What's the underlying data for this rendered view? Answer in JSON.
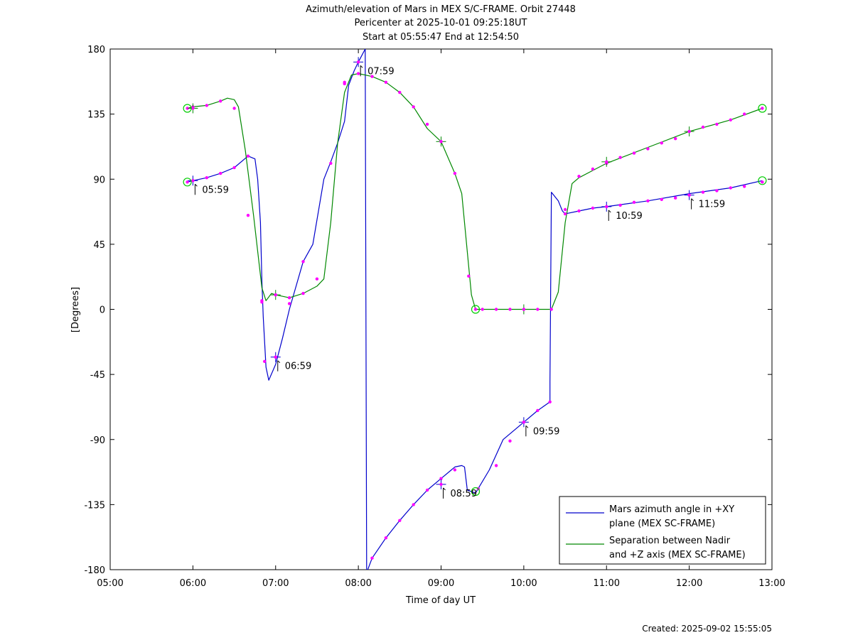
{
  "chart_data": {
    "type": "line",
    "title_lines": [
      "Azimuth/elevation of Mars in MEX S/C-FRAME.  Orbit 27448",
      "Pericenter at 2025-10-01 09:25:18UT",
      "Start at 05:55:47 End at 12:54:50"
    ],
    "xlabel": "Time of day UT",
    "ylabel": "[Degrees]",
    "xlim": [
      "05:00",
      "13:00"
    ],
    "ylim": [
      -180,
      180
    ],
    "x_ticks": [
      "05:00",
      "06:00",
      "07:00",
      "08:00",
      "09:00",
      "10:00",
      "11:00",
      "12:00",
      "13:00"
    ],
    "y_ticks": [
      180,
      135,
      90,
      45,
      0,
      -45,
      -90,
      -135,
      -180
    ],
    "legend": {
      "position": "bottom-right",
      "entries": [
        {
          "series": 0,
          "lines": [
            "Mars azimuth angle in +XY",
            "plane (MEX SC-FRAME)"
          ]
        },
        {
          "series": 1,
          "lines": [
            "Separation between Nadir",
            "and +Z axis (MEX SC-FRAME)"
          ]
        }
      ]
    },
    "series": [
      {
        "color": "#0000cc",
        "points": [
          [
            "05:56",
            88
          ],
          [
            "06:00",
            89
          ],
          [
            "06:10",
            91
          ],
          [
            "06:20",
            94
          ],
          [
            "06:30",
            98
          ],
          [
            "06:40",
            106
          ],
          [
            "06:45",
            104
          ],
          [
            "06:47",
            90
          ],
          [
            "06:49",
            60
          ],
          [
            "06:50",
            20
          ],
          [
            "06:51",
            -5
          ],
          [
            "06:53",
            -40
          ],
          [
            "06:55",
            -49
          ],
          [
            "07:00",
            -38
          ],
          [
            "07:05",
            -20
          ],
          [
            "07:10",
            0
          ],
          [
            "07:20",
            33
          ],
          [
            "07:27",
            45
          ],
          [
            "07:35",
            90
          ],
          [
            "07:40",
            102
          ],
          [
            "07:45",
            115
          ],
          [
            "07:50",
            130
          ],
          [
            "07:53",
            155
          ],
          [
            "07:57",
            165
          ],
          [
            "08:00",
            171
          ],
          [
            "08:05",
            180
          ],
          [
            "08:05",
            177
          ],
          [
            "08:06",
            -182
          ],
          [
            "08:10",
            -172
          ],
          [
            "08:20",
            -158
          ],
          [
            "08:30",
            -146
          ],
          [
            "08:40",
            -135
          ],
          [
            "08:50",
            -125
          ],
          [
            "09:00",
            -117
          ],
          [
            "09:10",
            -109
          ],
          [
            "09:15",
            -108
          ],
          [
            "09:17",
            -109
          ],
          [
            "09:19",
            -125
          ],
          [
            "09:25",
            -127
          ],
          [
            "09:35",
            -111
          ],
          [
            "09:45",
            -90
          ],
          [
            "10:00",
            -78
          ],
          [
            "10:10",
            -70
          ],
          [
            "10:19",
            -64
          ],
          [
            "10:19",
            -50
          ],
          [
            "10:20",
            81
          ],
          [
            "10:25",
            75
          ],
          [
            "10:28",
            68
          ],
          [
            "10:30",
            66
          ],
          [
            "10:40",
            68
          ],
          [
            "10:50",
            70
          ],
          [
            "11:00",
            71
          ],
          [
            "11:30",
            75
          ],
          [
            "12:00",
            80
          ],
          [
            "12:30",
            84
          ],
          [
            "12:53",
            89
          ]
        ],
        "markers": [
          [
            "05:56",
            88
          ],
          [
            "06:00",
            89
          ],
          [
            "06:10",
            91
          ],
          [
            "06:20",
            94
          ],
          [
            "06:30",
            98
          ],
          [
            "06:40",
            106
          ],
          [
            "06:50",
            5
          ],
          [
            "06:52",
            -36
          ],
          [
            "07:00",
            -33
          ],
          [
            "07:10",
            4
          ],
          [
            "07:20",
            33
          ],
          [
            "07:50",
            157
          ],
          [
            "08:10",
            -172
          ],
          [
            "08:20",
            -158
          ],
          [
            "08:30",
            -146
          ],
          [
            "08:40",
            -135
          ],
          [
            "08:50",
            -125
          ],
          [
            "09:00",
            -117
          ],
          [
            "09:10",
            -111
          ],
          [
            "09:27",
            -124
          ],
          [
            "09:40",
            -108
          ],
          [
            "09:50",
            -91
          ],
          [
            "10:00",
            -78
          ],
          [
            "10:10",
            -70
          ],
          [
            "10:19",
            -64
          ],
          [
            "10:30",
            66
          ],
          [
            "10:40",
            68
          ],
          [
            "10:50",
            70
          ],
          [
            "11:00",
            71
          ],
          [
            "11:10",
            72
          ],
          [
            "11:20",
            74
          ],
          [
            "11:30",
            75
          ],
          [
            "11:40",
            76
          ],
          [
            "11:50",
            77
          ],
          [
            "12:00",
            79
          ],
          [
            "12:10",
            81
          ],
          [
            "12:20",
            82
          ],
          [
            "12:30",
            84
          ],
          [
            "12:40",
            85
          ],
          [
            "12:53",
            88
          ]
        ]
      },
      {
        "color": "#008800",
        "points": [
          [
            "05:56",
            139
          ],
          [
            "06:00",
            140
          ],
          [
            "06:10",
            141
          ],
          [
            "06:20",
            144
          ],
          [
            "06:25",
            146
          ],
          [
            "06:30",
            145
          ],
          [
            "06:33",
            140
          ],
          [
            "06:38",
            110
          ],
          [
            "06:44",
            65
          ],
          [
            "06:50",
            15
          ],
          [
            "06:53",
            6
          ],
          [
            "06:57",
            11
          ],
          [
            "07:00",
            10
          ],
          [
            "07:10",
            8
          ],
          [
            "07:20",
            11
          ],
          [
            "07:30",
            16
          ],
          [
            "07:35",
            21
          ],
          [
            "07:40",
            60
          ],
          [
            "07:45",
            115
          ],
          [
            "07:50",
            150
          ],
          [
            "07:55",
            162
          ],
          [
            "08:00",
            163
          ],
          [
            "08:10",
            161
          ],
          [
            "08:20",
            157
          ],
          [
            "08:30",
            150
          ],
          [
            "08:40",
            140
          ],
          [
            "08:50",
            125
          ],
          [
            "09:00",
            116
          ],
          [
            "09:10",
            94
          ],
          [
            "09:15",
            80
          ],
          [
            "09:20",
            30
          ],
          [
            "09:22",
            10
          ],
          [
            "09:25",
            0
          ],
          [
            "09:30",
            0
          ],
          [
            "10:00",
            0
          ],
          [
            "10:20",
            0
          ],
          [
            "10:25",
            12
          ],
          [
            "10:30",
            60
          ],
          [
            "10:35",
            87
          ],
          [
            "10:40",
            91
          ],
          [
            "10:50",
            96
          ],
          [
            "11:00",
            101
          ],
          [
            "11:30",
            112
          ],
          [
            "12:00",
            123
          ],
          [
            "12:30",
            131
          ],
          [
            "12:53",
            139
          ]
        ],
        "markers": [
          [
            "05:56",
            139
          ],
          [
            "06:00",
            140
          ],
          [
            "06:10",
            141
          ],
          [
            "06:20",
            144
          ],
          [
            "06:30",
            139
          ],
          [
            "06:40",
            65
          ],
          [
            "06:50",
            6
          ],
          [
            "07:00",
            10
          ],
          [
            "07:10",
            8
          ],
          [
            "07:20",
            11
          ],
          [
            "07:30",
            21
          ],
          [
            "07:40",
            101
          ],
          [
            "07:50",
            156
          ],
          [
            "08:00",
            163
          ],
          [
            "08:10",
            161
          ],
          [
            "08:20",
            157
          ],
          [
            "08:30",
            150
          ],
          [
            "08:40",
            140
          ],
          [
            "08:50",
            128
          ],
          [
            "09:00",
            116
          ],
          [
            "09:10",
            94
          ],
          [
            "09:20",
            23
          ],
          [
            "09:25",
            0
          ],
          [
            "09:30",
            0
          ],
          [
            "09:40",
            0
          ],
          [
            "09:50",
            0
          ],
          [
            "10:00",
            0
          ],
          [
            "10:10",
            0
          ],
          [
            "10:20",
            0
          ],
          [
            "10:30",
            69
          ],
          [
            "10:40",
            92
          ],
          [
            "10:50",
            97
          ],
          [
            "11:00",
            101
          ],
          [
            "11:10",
            105
          ],
          [
            "11:20",
            108
          ],
          [
            "11:30",
            111
          ],
          [
            "11:40",
            115
          ],
          [
            "11:50",
            118
          ],
          [
            "12:00",
            123
          ],
          [
            "12:10",
            126
          ],
          [
            "12:20",
            128
          ],
          [
            "12:30",
            131
          ],
          [
            "12:40",
            135
          ],
          [
            "12:53",
            139
          ]
        ]
      }
    ],
    "hour_markers": [
      {
        "time": "06:00",
        "value": 89,
        "label": "05:59",
        "series": 0
      },
      {
        "time": "07:00",
        "value": -33,
        "label": "06:59",
        "series": 0
      },
      {
        "time": "08:00",
        "value": 171,
        "label": "07:59",
        "series": 0
      },
      {
        "time": "09:00",
        "value": -121,
        "label": "08:59",
        "series": 0
      },
      {
        "time": "10:00",
        "value": -78,
        "label": "09:59",
        "series": 0
      },
      {
        "time": "11:00",
        "value": 71,
        "label": "10:59",
        "series": 0
      },
      {
        "time": "12:00",
        "value": 79,
        "label": "11:59",
        "series": 0
      },
      {
        "time": "06:00",
        "value": 139,
        "label": "",
        "series": 1
      },
      {
        "time": "07:00",
        "value": 10,
        "label": "",
        "series": 1
      },
      {
        "time": "09:00",
        "value": 116,
        "label": "",
        "series": 1
      },
      {
        "time": "10:00",
        "value": 0,
        "label": "",
        "series": 1
      },
      {
        "time": "11:00",
        "value": 102,
        "label": "",
        "series": 1
      },
      {
        "time": "12:00",
        "value": 123,
        "label": "",
        "series": 1
      }
    ],
    "circles": [
      [
        "05:56",
        139
      ],
      [
        "05:56",
        88
      ],
      [
        "09:25",
        0
      ],
      [
        "09:25",
        -126
      ],
      [
        "12:53",
        139
      ],
      [
        "12:53",
        89
      ]
    ],
    "marker_color": "#ff00ff",
    "circle_color": "#00cc00"
  },
  "footer": {
    "created": "Created: 2025-09-02 15:55:05"
  }
}
